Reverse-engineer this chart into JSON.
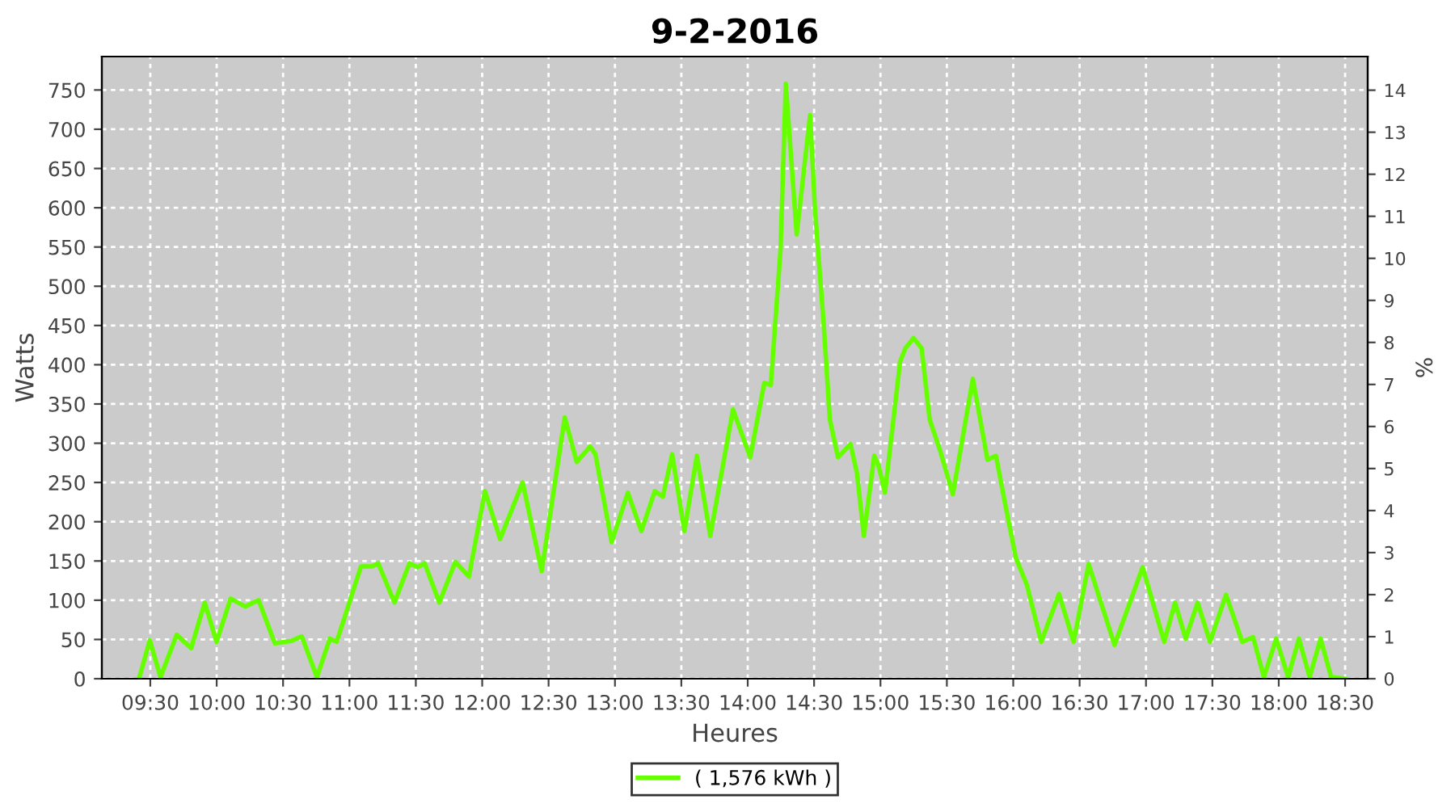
{
  "chart_data": {
    "type": "line",
    "title": "9-2-2016",
    "xlabel": "Heures",
    "ylabel": "Watts",
    "y2label": "%",
    "x": [
      9.415,
      9.496,
      9.577,
      9.699,
      9.808,
      9.91,
      9.999,
      10.105,
      10.215,
      10.316,
      10.438,
      10.56,
      10.641,
      10.755,
      10.852,
      10.904,
      11.087,
      11.169,
      11.217,
      11.339,
      11.452,
      11.513,
      11.567,
      11.677,
      11.798,
      11.9,
      12.021,
      12.135,
      12.305,
      12.448,
      12.622,
      12.712,
      12.813,
      12.853,
      12.975,
      13.097,
      13.199,
      13.3,
      13.361,
      13.431,
      13.523,
      13.617,
      13.718,
      13.889,
      14.019,
      14.125,
      14.174,
      14.247,
      14.287,
      14.369,
      14.47,
      14.506,
      14.571,
      14.619,
      14.68,
      14.774,
      14.823,
      14.875,
      14.953,
      14.985,
      15.034,
      15.148,
      15.188,
      15.249,
      15.31,
      15.371,
      15.452,
      15.545,
      15.696,
      15.806,
      15.87,
      15.94,
      16.02,
      16.102,
      16.211,
      16.345,
      16.455,
      16.568,
      16.763,
      16.975,
      17.137,
      17.219,
      17.299,
      17.389,
      17.482,
      17.603,
      17.725,
      17.807,
      17.888,
      17.981,
      18.071,
      18.152,
      18.233,
      18.315,
      18.395,
      18.498
    ],
    "series": [
      {
        "name": "( 1,576 kWh )",
        "color": "#66ff00",
        "values": [
          0,
          49,
          2,
          56,
          39,
          97,
          47,
          102,
          92,
          100,
          45,
          48,
          54,
          2,
          51,
          47,
          143,
          143,
          147,
          97,
          147,
          142,
          147,
          97,
          149,
          130,
          239,
          178,
          250,
          137,
          333,
          276,
          296,
          286,
          174,
          237,
          188,
          239,
          232,
          286,
          188,
          284,
          182,
          343,
          282,
          377,
          374,
          546,
          758,
          566,
          718,
          600,
          455,
          330,
          282,
          299,
          262,
          182,
          284,
          272,
          237,
          404,
          421,
          434,
          421,
          330,
          289,
          235,
          382,
          279,
          284,
          222,
          154,
          120,
          47,
          108,
          47,
          146,
          43,
          142,
          47,
          97,
          51,
          97,
          47,
          107,
          47,
          53,
          2,
          51,
          2,
          51,
          2,
          51,
          2,
          0
        ]
      }
    ],
    "xlim": [
      9.135,
      18.67
    ],
    "xticks": [
      {
        "value": 9.5,
        "label": "09:30"
      },
      {
        "value": 10,
        "label": "10:00"
      },
      {
        "value": 10.5,
        "label": "10:30"
      },
      {
        "value": 11,
        "label": "11:00"
      },
      {
        "value": 11.5,
        "label": "11:30"
      },
      {
        "value": 12,
        "label": "12:00"
      },
      {
        "value": 12.5,
        "label": "12:30"
      },
      {
        "value": 13,
        "label": "13:00"
      },
      {
        "value": 13.5,
        "label": "13:30"
      },
      {
        "value": 14,
        "label": "14:00"
      },
      {
        "value": 14.5,
        "label": "14:30"
      },
      {
        "value": 15,
        "label": "15:00"
      },
      {
        "value": 15.5,
        "label": "15:30"
      },
      {
        "value": 16,
        "label": "16:00"
      },
      {
        "value": 16.5,
        "label": "16:30"
      },
      {
        "value": 17,
        "label": "17:00"
      },
      {
        "value": 17.5,
        "label": "17:30"
      },
      {
        "value": 18,
        "label": "18:00"
      },
      {
        "value": 18.5,
        "label": "18:30"
      }
    ],
    "ylim": [
      0,
      792.6
    ],
    "yticks": [
      0,
      50,
      100,
      150,
      200,
      250,
      300,
      350,
      400,
      450,
      500,
      550,
      600,
      650,
      700,
      750
    ],
    "y2lim": [
      0,
      14.8
    ],
    "y2ticks": [
      0,
      1,
      2,
      3,
      4,
      5,
      6,
      7,
      8,
      9,
      10,
      11,
      12,
      13,
      14
    ],
    "grid": true,
    "legend": "bottom",
    "marker": "none",
    "line_style": "solid"
  }
}
